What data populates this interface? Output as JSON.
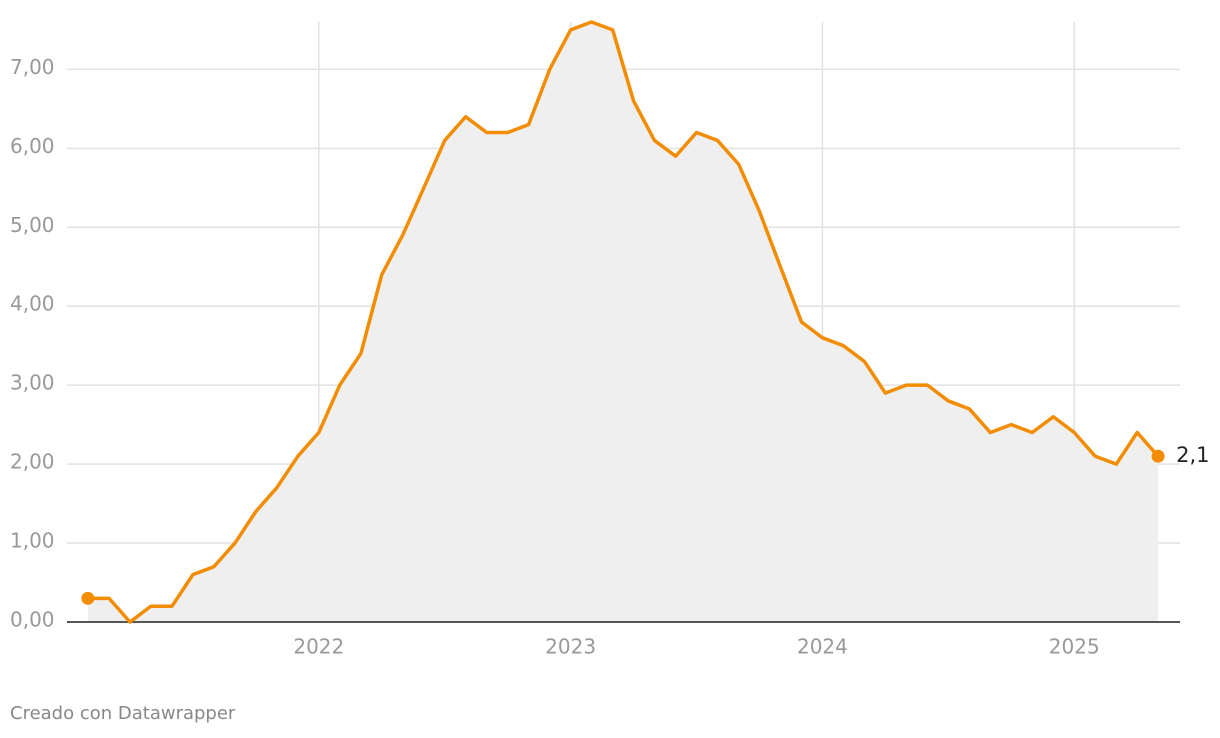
{
  "chart_data": {
    "type": "area-line",
    "x": [
      2021.083,
      2021.167,
      2021.25,
      2021.333,
      2021.417,
      2021.5,
      2021.583,
      2021.667,
      2021.75,
      2021.833,
      2021.917,
      2022.0,
      2022.083,
      2022.167,
      2022.25,
      2022.333,
      2022.417,
      2022.5,
      2022.583,
      2022.667,
      2022.75,
      2022.833,
      2022.917,
      2023.0,
      2023.083,
      2023.167,
      2023.25,
      2023.333,
      2023.417,
      2023.5,
      2023.583,
      2023.667,
      2023.75,
      2023.833,
      2023.917,
      2024.0,
      2024.083,
      2024.167,
      2024.25,
      2024.333,
      2024.417,
      2024.5,
      2024.583,
      2024.667,
      2024.75,
      2024.833,
      2024.917,
      2025.0,
      2025.083,
      2025.167,
      2025.25,
      2025.333
    ],
    "values": [
      0.3,
      0.3,
      0.0,
      0.2,
      0.2,
      0.6,
      0.7,
      1.0,
      1.4,
      1.7,
      2.1,
      2.4,
      3.0,
      3.4,
      4.4,
      4.9,
      5.5,
      6.1,
      6.4,
      6.2,
      6.2,
      6.3,
      7.0,
      7.5,
      7.6,
      7.5,
      6.6,
      6.1,
      5.9,
      6.2,
      6.1,
      5.8,
      5.2,
      4.5,
      3.8,
      3.6,
      3.5,
      3.3,
      2.9,
      3.0,
      3.0,
      2.8,
      2.7,
      2.4,
      2.5,
      2.4,
      2.6,
      2.4,
      2.1,
      2.0,
      2.4,
      2.1
    ],
    "value_labels": [
      null,
      null,
      null,
      null,
      null,
      null,
      null,
      null,
      null,
      null,
      null,
      null,
      null,
      null,
      null,
      null,
      null,
      null,
      null,
      null,
      null,
      null,
      null,
      null,
      null,
      null,
      null,
      null,
      null,
      null,
      null,
      null,
      null,
      null,
      null,
      null,
      null,
      null,
      null,
      null,
      null,
      null,
      null,
      null,
      null,
      null,
      null,
      null,
      null,
      null,
      null,
      "2,1"
    ],
    "color": "#f28c00",
    "area_color": "#efefef",
    "grid": true,
    "xlim": [
      2021.0,
      2025.42
    ],
    "xticks": [
      2022,
      2023,
      2024,
      2025
    ],
    "ylim": [
      0,
      7.6
    ],
    "yticks": [
      {
        "value": 0,
        "label": "0,00"
      },
      {
        "value": 1,
        "label": "1,00"
      },
      {
        "value": 2,
        "label": "2,00"
      },
      {
        "value": 3,
        "label": "3,00"
      },
      {
        "value": 4,
        "label": "4,00"
      },
      {
        "value": 5,
        "label": "5,00"
      },
      {
        "value": 6,
        "label": "6,00"
      },
      {
        "value": 7,
        "label": "7,00"
      }
    ],
    "footer": "Creado con Datawrapper"
  }
}
